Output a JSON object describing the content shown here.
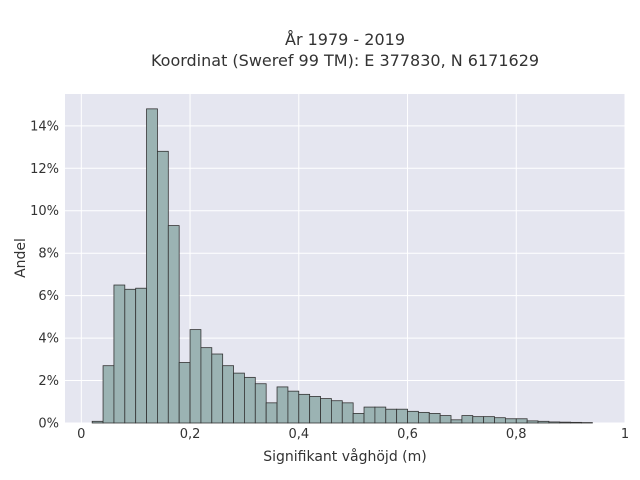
{
  "chart_data": {
    "type": "bar",
    "title": "År 1979 - 2019",
    "subtitle": "Koordinat (Sweref 99 TM): E 377830, N 6171629",
    "xlabel": "Signifikant våghöjd (m)",
    "ylabel": "Andel",
    "xlim": [
      -0.03,
      1.0
    ],
    "ylim": [
      0,
      15.5
    ],
    "x_ticks": [
      0,
      0.2,
      0.4,
      0.6,
      0.8,
      1
    ],
    "x_tick_labels": [
      "0",
      "0,2",
      "0,4",
      "0,6",
      "0,8",
      "1"
    ],
    "y_ticks": [
      0,
      2,
      4,
      6,
      8,
      10,
      12,
      14
    ],
    "y_tick_labels": [
      "0%",
      "2%",
      "4%",
      "6%",
      "8%",
      "10%",
      "12%",
      "14%"
    ],
    "grid": true,
    "bin_width": 0.02,
    "bin_starts": [
      0.02,
      0.04,
      0.06,
      0.08,
      0.1,
      0.12,
      0.14,
      0.16,
      0.18,
      0.2,
      0.22,
      0.24,
      0.26,
      0.28,
      0.3,
      0.32,
      0.34,
      0.36,
      0.38,
      0.4,
      0.42,
      0.44,
      0.46,
      0.48,
      0.5,
      0.52,
      0.54,
      0.56,
      0.58,
      0.6,
      0.62,
      0.64,
      0.66,
      0.68,
      0.7,
      0.72,
      0.74,
      0.76,
      0.78,
      0.8,
      0.82,
      0.84,
      0.86,
      0.88,
      0.9,
      0.92
    ],
    "values": [
      0.08,
      2.7,
      6.5,
      6.3,
      6.35,
      14.8,
      12.8,
      9.3,
      2.85,
      4.4,
      3.55,
      3.25,
      2.7,
      2.35,
      2.15,
      1.85,
      0.95,
      1.7,
      1.5,
      1.35,
      1.25,
      1.15,
      1.05,
      0.95,
      0.45,
      0.75,
      0.75,
      0.65,
      0.65,
      0.55,
      0.5,
      0.45,
      0.35,
      0.15,
      0.35,
      0.3,
      0.3,
      0.25,
      0.2,
      0.2,
      0.1,
      0.08,
      0.05,
      0.04,
      0.03,
      0.02
    ]
  },
  "colors": {
    "plot_background": "#e5e6f0",
    "grid": "#ffffff",
    "bar_fill": "#9bb3b3",
    "bar_stroke": "#333333"
  }
}
